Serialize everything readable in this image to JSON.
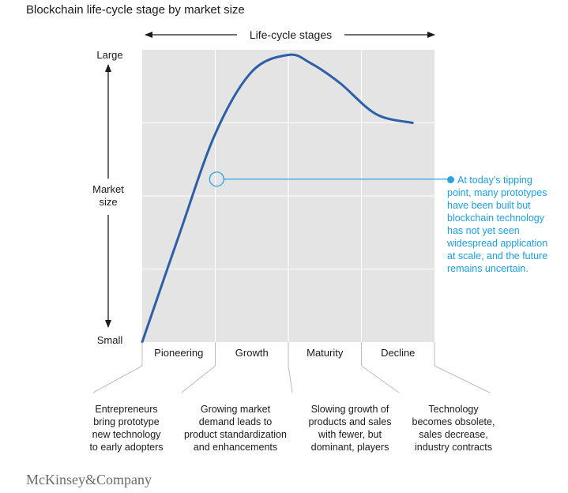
{
  "title": "Blockchain life-cycle stage by market size",
  "footer_logo": "McKinsey&Company",
  "colors": {
    "curve": "#2d5fa8",
    "panel": "#e4e4e4",
    "grid": "#ffffff",
    "callout": "#29a3e4",
    "axis": "#1a1a1a",
    "muted_line": "#bdbdbd"
  },
  "chart_data": {
    "type": "line",
    "title": "Blockchain life-cycle stage by market size",
    "top_label": "Life-cycle stages",
    "y_label_lines": [
      "Market",
      "size"
    ],
    "y_top_label": "Large",
    "y_bottom_label": "Small",
    "xlim": [
      0,
      4
    ],
    "ylim": [
      0,
      4
    ],
    "grid": true,
    "stages": [
      "Pioneering",
      "Growth",
      "Maturity",
      "Decline"
    ],
    "stage_descriptions": [
      [
        "Entrepreneurs",
        "bring prototype",
        "new technology",
        "to early adopters"
      ],
      [
        "Growing market",
        "demand leads to",
        "product standardization",
        "and enhancements"
      ],
      [
        "Slowing growth of",
        "products and sales",
        "with fewer, but",
        "dominant, players"
      ],
      [
        "Technology",
        "becomes obsolete,",
        "sales decrease,",
        "industry contracts"
      ]
    ],
    "curve": {
      "x": [
        0,
        0.5,
        1.0,
        1.5,
        2.0,
        2.3,
        2.7,
        3.2,
        3.7
      ],
      "y": [
        0,
        1.45,
        2.85,
        3.7,
        3.93,
        3.82,
        3.55,
        3.12,
        3.0
      ]
    },
    "marker_point": {
      "x": 1.02,
      "y": 2.23
    },
    "callout": {
      "lines": [
        "At today's tipping",
        "point, many prototypes",
        "have been built but",
        "blockchain technology",
        "has not yet seen",
        "widespread application",
        "at scale, and the future",
        "remains uncertain."
      ]
    }
  }
}
